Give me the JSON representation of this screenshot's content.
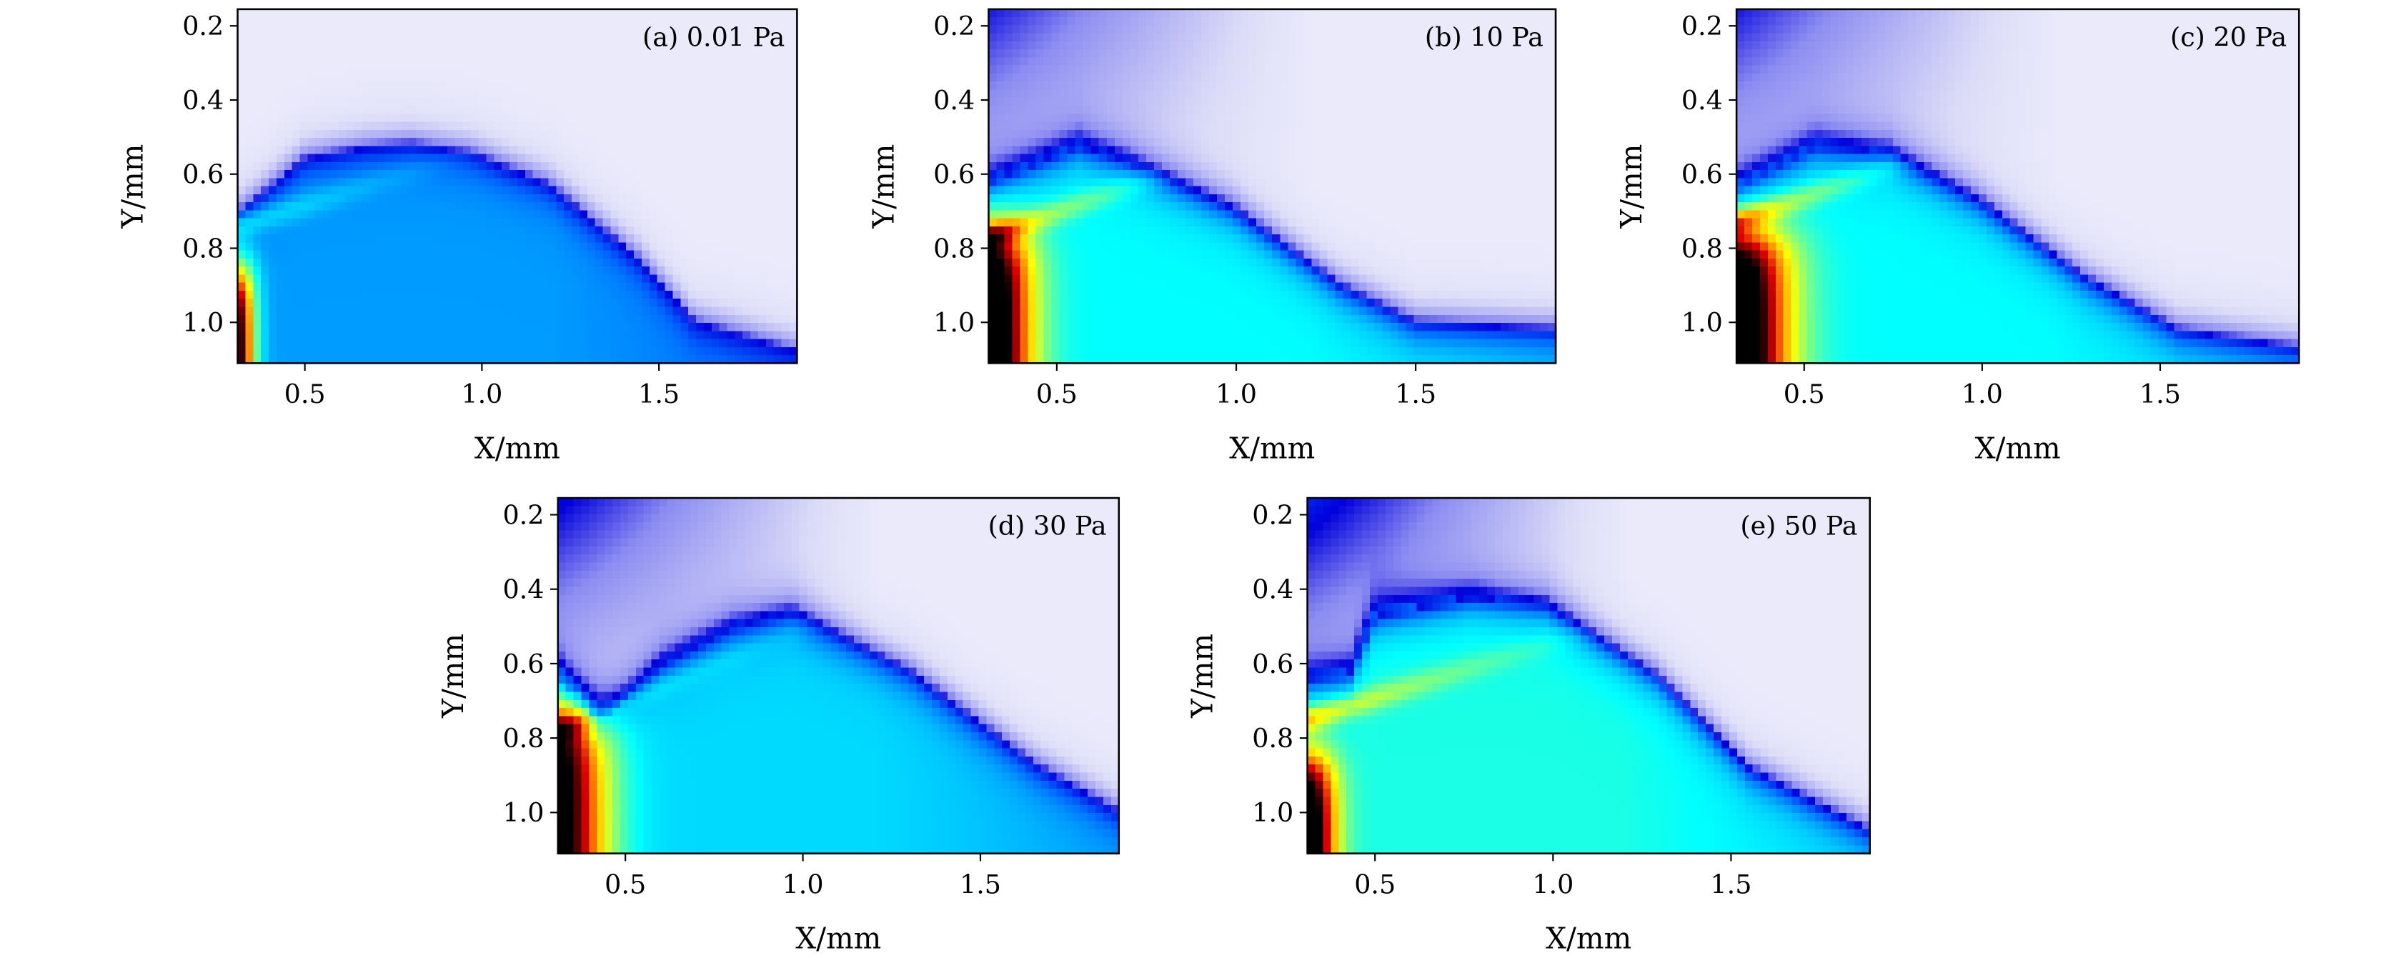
{
  "chart_data": [
    {
      "type": "heatmap",
      "annotation": "(a) 0.01 Pa",
      "xlabel": "X/mm",
      "ylabel": "Y/mm",
      "xlim": [
        0.31,
        1.89
      ],
      "ylim": [
        1.11,
        0.155
      ],
      "xticks": [
        "0.5",
        "1.0",
        "1.5"
      ],
      "yticks": [
        "0.2",
        "0.4",
        "0.6",
        "0.8",
        "1.0"
      ],
      "colormap": "jet with white low end",
      "front": [
        [
          0.31,
          0.71
        ],
        [
          0.5,
          0.56
        ],
        [
          0.67,
          0.53
        ],
        [
          0.8,
          0.52
        ],
        [
          0.97,
          0.545
        ],
        [
          1.19,
          0.63
        ],
        [
          1.44,
          0.83
        ],
        [
          1.6,
          1.0
        ],
        [
          1.89,
          1.08
        ]
      ],
      "inner_level": 0.4,
      "hot_region": {
        "level": 0.6,
        "width": 0.05,
        "y_from": 0.86
      },
      "streak": {
        "level": 0.1,
        "y_start": 0.74,
        "slope": -0.3
      },
      "outer_top_left": 0.0
    },
    {
      "type": "heatmap",
      "annotation": "(b) 10 Pa",
      "xlabel": "X/mm",
      "ylabel": "Y/mm",
      "xlim": [
        0.31,
        1.89
      ],
      "ylim": [
        1.11,
        0.155
      ],
      "xticks": [
        "0.5",
        "1.0",
        "1.5"
      ],
      "yticks": [
        "0.2",
        "0.4",
        "0.6",
        "0.8",
        "1.0"
      ],
      "colormap": "jet with white low end",
      "front": [
        [
          0.31,
          0.62
        ],
        [
          0.56,
          0.52
        ],
        [
          0.69,
          0.56
        ],
        [
          0.99,
          0.69
        ],
        [
          1.29,
          0.9
        ],
        [
          1.5,
          1.0
        ],
        [
          1.89,
          1.02
        ]
      ],
      "inner_level": 0.5,
      "hot_region": {
        "level": 0.62,
        "width": 0.12,
        "y_from": 0.76
      },
      "streak": {
        "level": 0.2,
        "y_start": 0.77,
        "slope": -0.35
      },
      "outer_top_left": 0.2
    },
    {
      "type": "heatmap",
      "annotation": "(c) 20 Pa",
      "xlabel": "X/mm",
      "ylabel": "Y/mm",
      "xlim": [
        0.31,
        1.89
      ],
      "ylim": [
        1.11,
        0.155
      ],
      "xticks": [
        "0.5",
        "1.0",
        "1.5"
      ],
      "yticks": [
        "0.2",
        "0.4",
        "0.6",
        "0.8",
        "1.0"
      ],
      "colormap": "jet with white low end",
      "front": [
        [
          0.31,
          0.63
        ],
        [
          0.53,
          0.52
        ],
        [
          0.74,
          0.54
        ],
        [
          0.99,
          0.67
        ],
        [
          1.29,
          0.88
        ],
        [
          1.55,
          1.02
        ],
        [
          1.89,
          1.07
        ]
      ],
      "inner_level": 0.5,
      "hot_region": {
        "level": 0.62,
        "width": 0.15,
        "y_from": 0.76
      },
      "streak": {
        "level": 0.2,
        "y_start": 0.73,
        "slope": -0.35
      },
      "outer_top_left": 0.2
    },
    {
      "type": "heatmap",
      "annotation": "(d) 30 Pa",
      "xlabel": "X/mm",
      "ylabel": "Y/mm",
      "xlim": [
        0.31,
        1.89
      ],
      "ylim": [
        1.11,
        0.155
      ],
      "xticks": [
        "0.5",
        "1.0",
        "1.5"
      ],
      "yticks": [
        "0.2",
        "0.4",
        "0.6",
        "0.8",
        "1.0"
      ],
      "colormap": "jet with white low end",
      "front": [
        [
          0.31,
          0.62
        ],
        [
          0.42,
          0.76
        ],
        [
          0.6,
          0.6
        ],
        [
          0.8,
          0.5
        ],
        [
          0.97,
          0.46
        ],
        [
          1.3,
          0.62
        ],
        [
          1.65,
          0.87
        ],
        [
          1.89,
          1.0
        ]
      ],
      "inner_level": 0.46,
      "hot_region": {
        "level": 0.58,
        "width": 0.14,
        "y_from": 0.72
      },
      "streak": {
        "level": 0.12,
        "y_start": 0.78,
        "slope": -0.4
      },
      "outer_top_left": 0.22
    },
    {
      "type": "heatmap",
      "annotation": "(e) 50 Pa",
      "xlabel": "X/mm",
      "ylabel": "Y/mm",
      "xlim": [
        0.31,
        1.89
      ],
      "ylim": [
        1.11,
        0.155
      ],
      "xticks": [
        "0.5",
        "1.0",
        "1.5"
      ],
      "yticks": [
        "0.2",
        "0.4",
        "0.6",
        "0.8",
        "1.0"
      ],
      "colormap": "jet with white low end",
      "front": [
        [
          0.31,
          0.64
        ],
        [
          0.43,
          0.62
        ],
        [
          0.5,
          0.47
        ],
        [
          0.77,
          0.42
        ],
        [
          0.98,
          0.44
        ],
        [
          1.29,
          0.63
        ],
        [
          1.55,
          0.88
        ],
        [
          1.89,
          1.05
        ]
      ],
      "inner_level": 0.52,
      "hot_region": {
        "level": 0.58,
        "width": 0.08,
        "y_from": 0.86
      },
      "streak": {
        "level": 0.22,
        "y_start": 0.75,
        "slope": -0.3
      },
      "outer_top_left": 0.24
    }
  ]
}
